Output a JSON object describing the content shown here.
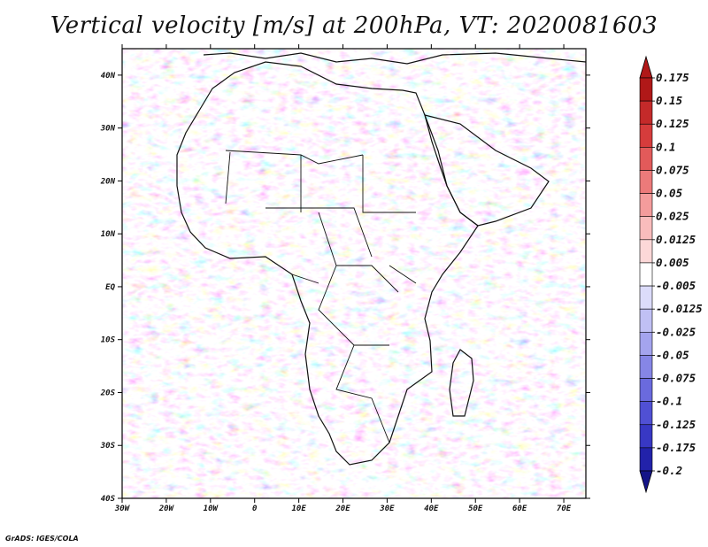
{
  "title": "Vertical velocity [m/s] at 200hPa, VT: 2020081603",
  "credit": "GrADS: IGES/COLA",
  "map": {
    "region": "Africa",
    "field": "vertical velocity",
    "lat_labels": [
      "40N",
      "30N",
      "20N",
      "10N",
      "EQ",
      "10S",
      "20S",
      "30S",
      "40S"
    ],
    "lon_labels": [
      "30W",
      "20W",
      "10W",
      "0",
      "10E",
      "20E",
      "30E",
      "40E",
      "50E",
      "60E",
      "70E"
    ],
    "lat_range": [
      -40,
      45
    ],
    "lon_range": [
      -30,
      75
    ]
  },
  "colorbar": {
    "labels": [
      "0.175",
      "0.15",
      "0.125",
      "0.1",
      "0.075",
      "0.05",
      "0.025",
      "0.0125",
      "0.005",
      "-0.005",
      "-0.0125",
      "-0.025",
      "-0.05",
      "-0.075",
      "-0.1",
      "-0.125",
      "-0.175",
      "-0.2"
    ],
    "colors": [
      "#b01818",
      "#c42a2a",
      "#d63c3c",
      "#e25a5a",
      "#ec7a7a",
      "#f49c9c",
      "#f9bcbc",
      "#fcd8d8",
      "#ffffff",
      "#dcdcfa",
      "#c0c0f4",
      "#a4a4ee",
      "#8686e6",
      "#6a6ade",
      "#5050d4",
      "#3838c4",
      "#2222aa",
      "#141488"
    ]
  }
}
